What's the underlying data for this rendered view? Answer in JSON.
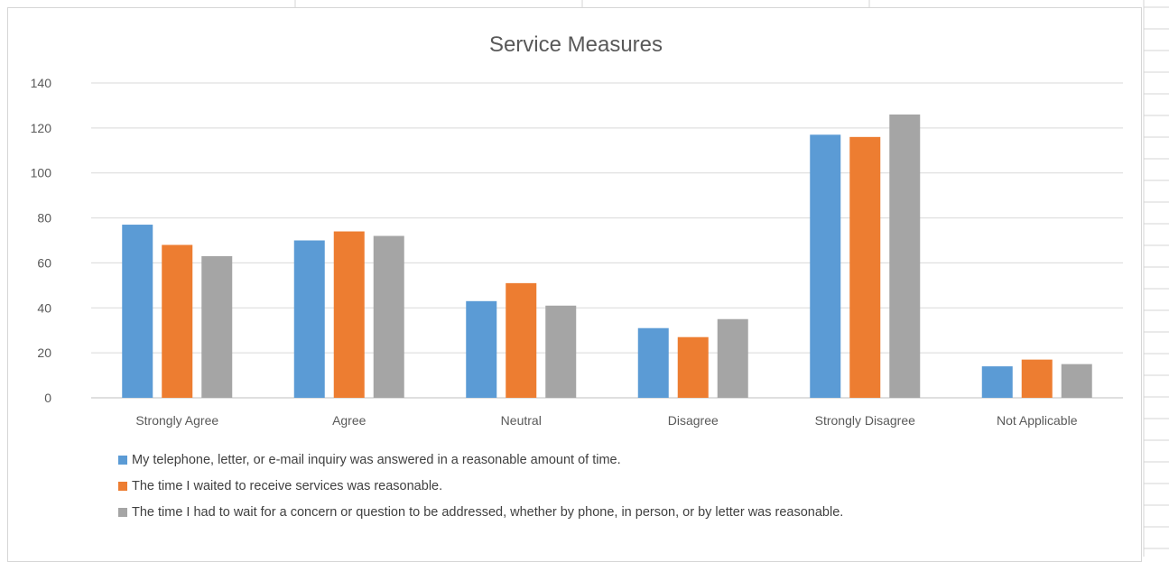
{
  "chart_data": {
    "type": "bar",
    "title": "Service Measures",
    "xlabel": "",
    "ylabel": "",
    "categories": [
      "Strongly Agree",
      "Agree",
      "Neutral",
      "Disagree",
      "Strongly Disagree",
      "Not Applicable"
    ],
    "series": [
      {
        "name": "My telephone, letter, or e-mail inquiry was answered in a reasonable amount of time.",
        "color": "#5b9bd5",
        "values": [
          77,
          70,
          43,
          31,
          117,
          14
        ]
      },
      {
        "name": "The time I waited to receive services was reasonable.",
        "color": "#ed7d31",
        "values": [
          68,
          74,
          51,
          27,
          116,
          17
        ]
      },
      {
        "name": "The time I had to wait for a concern or question to be addressed, whether by phone, in person, or by letter was reasonable.",
        "color": "#a5a5a5",
        "values": [
          63,
          72,
          41,
          35,
          126,
          15
        ]
      }
    ],
    "ylim": [
      0,
      140
    ],
    "yticks": [
      0,
      20,
      40,
      60,
      80,
      100,
      120,
      140
    ],
    "grid": true,
    "legend_position": "bottom"
  }
}
